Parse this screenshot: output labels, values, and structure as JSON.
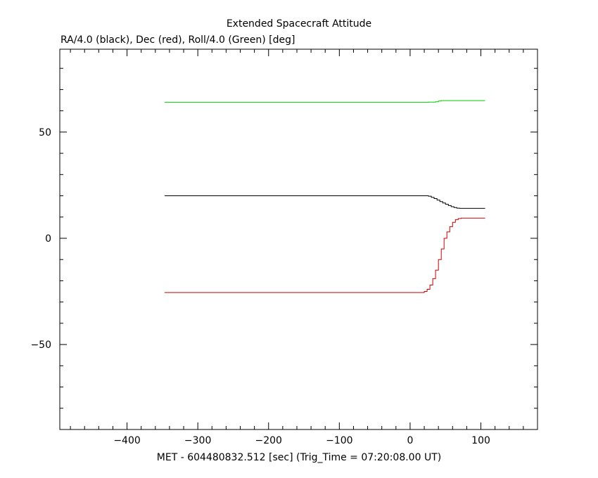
{
  "chart_data": {
    "type": "line",
    "title": "Extended Spacecraft Attitude",
    "subtitle": "RA/4.0 (black), Dec (red), Roll/4.0 (Green) [deg]",
    "xlabel": "MET - 604480832.512 [sec] (Trig_Time = 07:20:08.00 UT)",
    "ylabel": "",
    "xlim": [
      -495,
      180
    ],
    "ylim": [
      -90,
      89
    ],
    "xticks": [
      -400,
      -300,
      -200,
      -100,
      0,
      100
    ],
    "xtick_labels": [
      "−400",
      "−300",
      "−200",
      "−100",
      "0",
      "100"
    ],
    "yticks": [
      -50,
      0,
      50
    ],
    "ytick_labels": [
      "−50",
      "0",
      "50"
    ],
    "grid": false,
    "series": [
      {
        "name": "RA/4.0",
        "color": "#000000",
        "step": true,
        "x": [
          -347,
          22,
          26,
          30,
          34,
          38,
          42,
          46,
          50,
          54,
          58,
          62,
          66,
          70,
          106
        ],
        "y": [
          20.0,
          20.0,
          19.8,
          19.3,
          18.7,
          18.0,
          17.3,
          16.6,
          16.0,
          15.4,
          14.9,
          14.5,
          14.2,
          14.1,
          14.1
        ]
      },
      {
        "name": "Dec",
        "color": "#cc0000",
        "step": true,
        "x": [
          -347,
          16,
          20,
          24,
          28,
          32,
          36,
          40,
          44,
          48,
          52,
          56,
          60,
          64,
          68,
          72,
          76,
          106
        ],
        "y": [
          -25.5,
          -25.5,
          -25.0,
          -24.0,
          -22.0,
          -19.0,
          -15.0,
          -10.0,
          -5.0,
          0.0,
          3.0,
          5.5,
          7.5,
          8.8,
          9.3,
          9.5,
          9.5,
          9.5
        ]
      },
      {
        "name": "Roll/4.0",
        "color": "#00cc00",
        "step": true,
        "x": [
          -347,
          14,
          26,
          36,
          40,
          44,
          106
        ],
        "y": [
          64.0,
          64.0,
          64.1,
          64.3,
          64.6,
          64.8,
          64.8
        ]
      }
    ]
  }
}
